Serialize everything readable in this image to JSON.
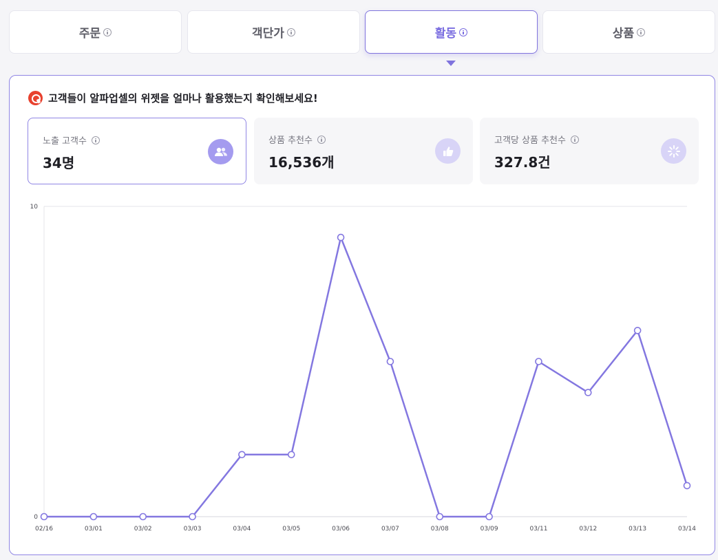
{
  "tabs": [
    {
      "label": "주문",
      "active": false
    },
    {
      "label": "객단가",
      "active": false
    },
    {
      "label": "활동",
      "active": true
    },
    {
      "label": "상품",
      "active": false
    }
  ],
  "headline": "고객들이 알파업셀의 위젯을 얼마나 활용했는지 확인해보세요!",
  "cards": [
    {
      "label": "노출 고객수",
      "value": "34명",
      "icon": "users-icon",
      "active": true
    },
    {
      "label": "상품 추천수",
      "value": "16,536개",
      "icon": "thumbs-up-icon",
      "active": false
    },
    {
      "label": "고객당 상품 추천수",
      "value": "327.8건",
      "icon": "spinner-icon",
      "active": false
    }
  ],
  "colors": {
    "accent": "#7f73dd",
    "line": "#8377e0",
    "badge": "#a49bef",
    "badge_light": "#d8d4f7"
  },
  "chart_data": {
    "type": "line",
    "categories": [
      "02/16",
      "03/01",
      "03/02",
      "03/03",
      "03/04",
      "03/05",
      "03/06",
      "03/07",
      "03/08",
      "03/09",
      "03/11",
      "03/12",
      "03/13",
      "03/14"
    ],
    "series": [
      {
        "values": [
          0,
          0,
          0,
          0,
          2,
          2,
          9,
          5,
          0,
          0,
          5,
          4,
          6,
          1
        ]
      }
    ],
    "y_ticks": [
      "0",
      "10"
    ],
    "ylim": [
      0,
      10
    ],
    "grid": true
  }
}
